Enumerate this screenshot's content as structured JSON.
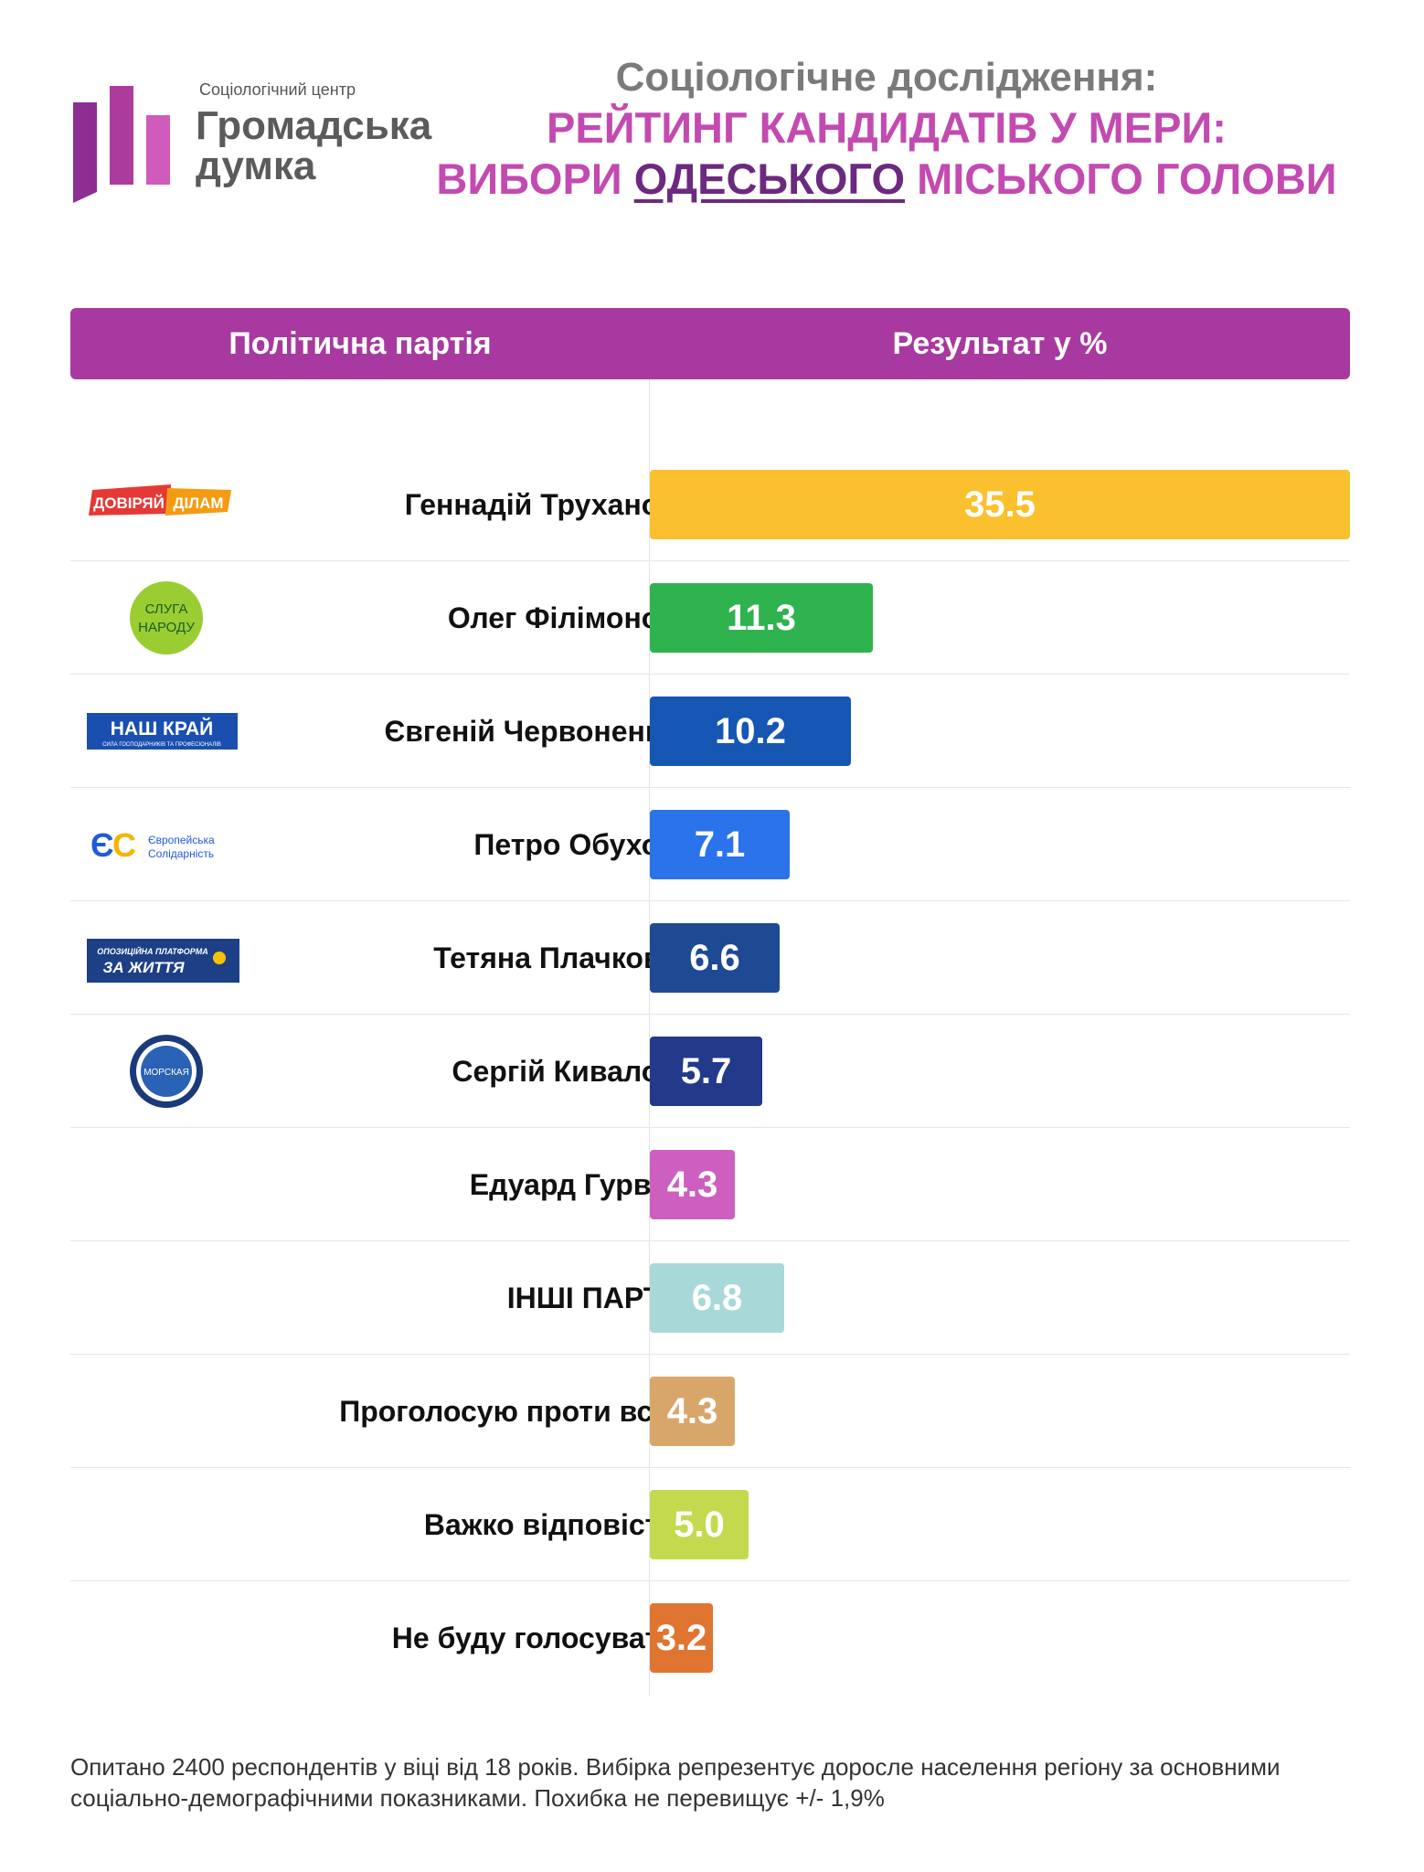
{
  "logo": {
    "caption": "Соціологічний центр",
    "name_line1": "Громадська",
    "name_line2": "думка"
  },
  "headline": {
    "subtitle": "Соціологічне дослідження:",
    "line1": "РЕЙТИНГ КАНДИДАТІВ У МЕРИ:",
    "line2_prefix": "ВИБОРИ ",
    "line2_city": "ОДЕСЬКОГО",
    "line2_suffix": " МІСЬКОГО ГОЛОВИ"
  },
  "table_header": {
    "party": "Політична партія",
    "result": "Результат у %"
  },
  "party_logos": {
    "doviryay": {
      "text1": "ДОВІРЯЙ",
      "text2": "ДІЛАМ"
    },
    "sluha": {
      "text1": "СЛУГА",
      "text2": "НАРОДУ"
    },
    "nash_krai": {
      "text1": "НАШ КРАЙ",
      "text2": "СИЛА ГОСПОДАРНИКІВ ТА ПРОФЕСІОНАЛІВ"
    },
    "yes": {
      "mark": "ЄС",
      "text1": "Європейська",
      "text2": "Солідарність"
    },
    "opzzh": {
      "text1": "ОПОЗИЦІЙНА ПЛАТФОРМА",
      "text2": "ЗА ЖИТТЯ"
    },
    "morska": {
      "text1": "МОРСКАЯ"
    }
  },
  "chart_data": {
    "type": "bar",
    "orientation": "horizontal",
    "xlim": [
      0,
      35.5
    ],
    "categories": [
      "Геннадій Труханов",
      "Олег Філімонов",
      "Євгеній Червоненко",
      "Петро Обухов",
      "Тетяна Плачкова",
      "Сергій Кивалов",
      "Едуард Гурвіц",
      "ІНШІ ПАРТІЇ",
      "Проголосую проти всіх",
      "Важко відповісти",
      "Не буду голосувати"
    ],
    "values": [
      35.5,
      11.3,
      10.2,
      7.1,
      6.6,
      5.7,
      4.3,
      6.8,
      4.3,
      5.0,
      3.2
    ],
    "labels": [
      "35.5",
      "11.3",
      "10.2",
      "7.1",
      "6.6",
      "5.7",
      "4.3",
      "6.8",
      "4.3",
      "5.0",
      "3.2"
    ],
    "colors": [
      "#fbc02d",
      "#2fb34f",
      "#1557b3",
      "#2a73ea",
      "#1e4a94",
      "#233a8a",
      "#cc5fc0",
      "#a8d9d8",
      "#d9a66a",
      "#c5d94e",
      "#e07532"
    ],
    "logos": [
      "doviryay",
      "sluha",
      "nash_krai",
      "yes",
      "opzzh",
      "morska",
      "",
      "",
      "",
      "",
      ""
    ]
  },
  "footnote": "Опитано 2400 респондентів у віці від 18 років. Вибірка репрезентує доросле населення регіону за основними соціально-демографічними показниками. Похибка не перевищує +/- 1,9%"
}
